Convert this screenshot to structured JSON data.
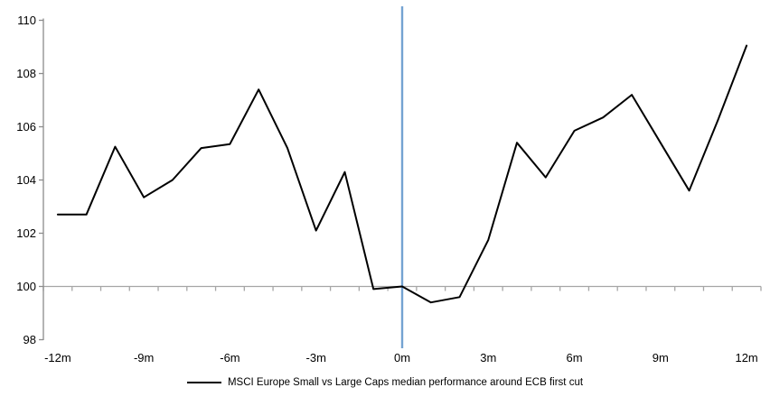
{
  "chart_data": {
    "type": "line",
    "title": "",
    "x": [
      -12,
      -11,
      -10,
      -9,
      -8,
      -7,
      -6,
      -5,
      -4,
      -3,
      -2,
      -1,
      0,
      1,
      2,
      3,
      4,
      5,
      6,
      7,
      8,
      9,
      10,
      11,
      12
    ],
    "xtick_labels": [
      "-12m",
      "-9m",
      "-6m",
      "-3m",
      "0m",
      "3m",
      "6m",
      "9m",
      "12m"
    ],
    "ylim": [
      98,
      110
    ],
    "ytick_step": 2,
    "ytick_labels": [
      "98",
      "100",
      "102",
      "104",
      "106",
      "108",
      "110"
    ],
    "axis_baseline_value": 100,
    "series": [
      {
        "name": "MSCI Europe Small vs Large Caps median performance around ECB first cut",
        "color": "#000000",
        "values": [
          102.7,
          102.7,
          105.25,
          103.35,
          104.0,
          105.2,
          105.35,
          107.4,
          105.2,
          102.1,
          104.3,
          99.9,
          100.0,
          99.4,
          99.6,
          101.75,
          105.4,
          104.1,
          105.85,
          106.35,
          107.2,
          105.4,
          103.6,
          106.25,
          109.05
        ]
      }
    ],
    "event_line": {
      "x": 0,
      "color": "#74A3D2"
    },
    "colors": {
      "axis": "#8C8C8C",
      "baseline": "#A6A6A6"
    },
    "grid": "horizontal line at 100 only",
    "legend_position": "bottom"
  }
}
